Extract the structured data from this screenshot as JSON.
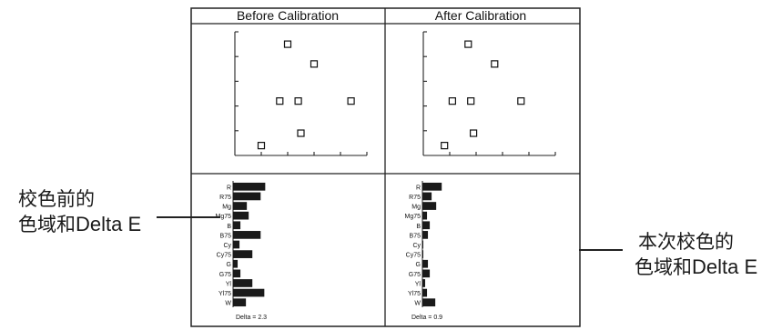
{
  "chart_data": [
    {
      "type": "scatter",
      "title": "Before Calibration",
      "points": [
        {
          "x": 2,
          "y": 4.5
        },
        {
          "x": 3,
          "y": 3.7
        },
        {
          "x": 1.7,
          "y": 2.2
        },
        {
          "x": 2.4,
          "y": 2.2
        },
        {
          "x": 4.4,
          "y": 2.2
        },
        {
          "x": 2.5,
          "y": 0.9
        },
        {
          "x": 1,
          "y": 0.4
        }
      ],
      "xlim": [
        0,
        5
      ],
      "ylim": [
        0,
        5
      ],
      "grid": false
    },
    {
      "type": "scatter",
      "title": "After Calibration",
      "points": [
        {
          "x": 1.7,
          "y": 4.5
        },
        {
          "x": 2.7,
          "y": 3.7
        },
        {
          "x": 1.1,
          "y": 2.2
        },
        {
          "x": 1.8,
          "y": 2.2
        },
        {
          "x": 3.7,
          "y": 2.2
        },
        {
          "x": 1.9,
          "y": 0.9
        },
        {
          "x": 0.8,
          "y": 0.4
        }
      ],
      "xlim": [
        0,
        5
      ],
      "ylim": [
        0,
        5
      ],
      "grid": false
    },
    {
      "type": "bar",
      "orientation": "horizontal",
      "categories": [
        "R",
        "R75",
        "Mg",
        "Mg75",
        "B",
        "B75",
        "Cy",
        "Cy75",
        "G",
        "G75",
        "Yl",
        "Yl75",
        "W"
      ],
      "values": [
        3.5,
        3.0,
        1.5,
        1.7,
        0.8,
        3.0,
        0.7,
        2.1,
        0.5,
        0.8,
        2.1,
        3.4,
        1.4
      ],
      "xlim": [
        0,
        10
      ],
      "annotation": "Delta = 2.3"
    },
    {
      "type": "bar",
      "orientation": "horizontal",
      "categories": [
        "R",
        "R75",
        "Mg",
        "Mg75",
        "B",
        "B75",
        "Cy",
        "Cy75",
        "G",
        "G75",
        "Yl",
        "Yl75",
        "W"
      ],
      "values": [
        2.1,
        1.0,
        1.5,
        0.5,
        0.8,
        0.6,
        0.1,
        0.1,
        0.6,
        0.8,
        0.3,
        0.5,
        1.4
      ],
      "xlim": [
        0,
        10
      ],
      "annotation": "Delta = 0.9"
    }
  ],
  "callouts": {
    "left": {
      "line1": "校色前的",
      "line2_cn": "色域和",
      "line2_en": "Delta E"
    },
    "right": {
      "line1": "本次校色的",
      "line2_cn": "色域和",
      "line2_en": "Delta E"
    }
  }
}
